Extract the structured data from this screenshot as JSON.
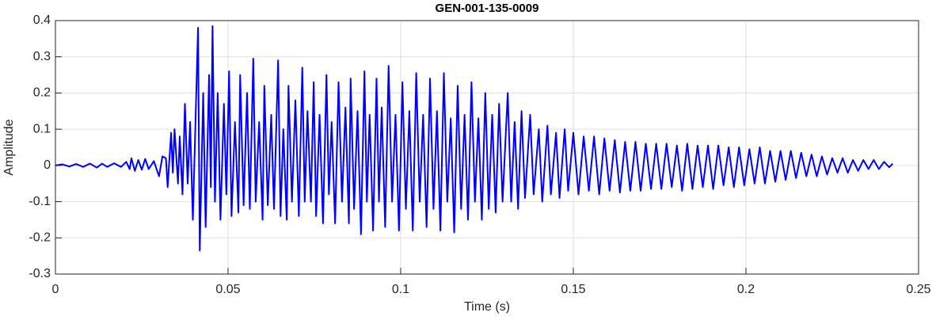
{
  "chart_data": {
    "type": "line",
    "title": "GEN-001-135-0009",
    "x_label": "Time (s)",
    "y_label": "Amplitude",
    "x": [
      0,
      0.002,
      0.004,
      0.006,
      0.008,
      0.01,
      0.012,
      0.0135,
      0.015,
      0.017,
      0.019,
      0.0205,
      0.0215,
      0.022,
      0.023,
      0.024,
      0.025,
      0.026,
      0.027,
      0.0285,
      0.03,
      0.031,
      0.032,
      0.0325,
      0.0335,
      0.034,
      0.0345,
      0.0355,
      0.036,
      0.0368,
      0.0375,
      0.0383,
      0.039,
      0.0398,
      0.0413,
      0.0418,
      0.0428,
      0.0435,
      0.0445,
      0.045,
      0.0455,
      0.0462,
      0.047,
      0.0478,
      0.0488,
      0.0495,
      0.0503,
      0.051,
      0.052,
      0.053,
      0.0535,
      0.0545,
      0.0555,
      0.0563,
      0.0573,
      0.058,
      0.059,
      0.06,
      0.0605,
      0.0615,
      0.0625,
      0.0633,
      0.0645,
      0.0652,
      0.066,
      0.067,
      0.0675,
      0.0685,
      0.0695,
      0.0705,
      0.0715,
      0.0722,
      0.073,
      0.074,
      0.0748,
      0.0755,
      0.0765,
      0.0775,
      0.0785,
      0.0792,
      0.08,
      0.081,
      0.082,
      0.083,
      0.084,
      0.085,
      0.0855,
      0.0865,
      0.0875,
      0.0885,
      0.0895,
      0.0902,
      0.091,
      0.092,
      0.093,
      0.0937,
      0.0945,
      0.0955,
      0.0965,
      0.0975,
      0.0985,
      0.0995,
      0.1005,
      0.1015,
      0.1025,
      0.1035,
      0.1045,
      0.1055,
      0.1065,
      0.1075,
      0.1085,
      0.1095,
      0.1105,
      0.1115,
      0.1125,
      0.1135,
      0.1145,
      0.1155,
      0.1165,
      0.1175,
      0.1185,
      0.1195,
      0.1205,
      0.1215,
      0.1225,
      0.1235,
      0.1245,
      0.1255,
      0.1265,
      0.1275,
      0.1285,
      0.1295,
      0.131,
      0.132,
      0.133,
      0.134,
      0.135,
      0.136,
      0.1375,
      0.1385,
      0.14,
      0.141,
      0.1425,
      0.1435,
      0.145,
      0.146,
      0.1475,
      0.1485,
      0.15,
      0.1515,
      0.153,
      0.1545,
      0.156,
      0.1575,
      0.159,
      0.1605,
      0.162,
      0.1635,
      0.165,
      0.1665,
      0.168,
      0.1695,
      0.171,
      0.1725,
      0.174,
      0.1755,
      0.177,
      0.1785,
      0.18,
      0.1815,
      0.183,
      0.1845,
      0.186,
      0.1875,
      0.189,
      0.1905,
      0.192,
      0.1935,
      0.195,
      0.1965,
      0.198,
      0.1995,
      0.201,
      0.2025,
      0.204,
      0.2055,
      0.207,
      0.2085,
      0.21,
      0.2115,
      0.213,
      0.2145,
      0.216,
      0.2175,
      0.219,
      0.2205,
      0.222,
      0.2235,
      0.225,
      0.2265,
      0.228,
      0.2295,
      0.231,
      0.2325,
      0.234,
      0.2355,
      0.237,
      0.2385,
      0.24,
      0.2415,
      0.2425
    ],
    "series": [
      {
        "color": "#0000ff",
        "values": [
          0,
          0.003,
          -0.003,
          0.004,
          -0.004,
          0.005,
          -0.006,
          0.005,
          -0.004,
          0.006,
          -0.004,
          0.01,
          -0.01,
          0.02,
          -0.015,
          0.015,
          -0.012,
          0.018,
          -0.01,
          0.012,
          -0.03,
          0.025,
          0.02,
          -0.06,
          0.09,
          -0.02,
          0.1,
          -0.05,
          0.08,
          -0.08,
          0.17,
          -0.05,
          0.12,
          -0.15,
          0.38,
          -0.235,
          0.2,
          -0.17,
          0.25,
          -0.06,
          0.385,
          -0.1,
          0.2,
          -0.15,
          0.17,
          -0.08,
          0.26,
          -0.14,
          0.12,
          -0.13,
          0.25,
          -0.11,
          0.2,
          -0.12,
          0.295,
          -0.1,
          0.12,
          -0.15,
          0.22,
          -0.11,
          0.14,
          -0.12,
          0.29,
          -0.14,
          0.1,
          -0.15,
          0.22,
          -0.1,
          0.18,
          -0.14,
          0.27,
          -0.1,
          0.15,
          -0.1,
          0.23,
          -0.14,
          0.14,
          -0.16,
          0.25,
          -0.08,
          0.12,
          -0.16,
          0.23,
          -0.1,
          0.16,
          -0.16,
          0.24,
          -0.12,
          0.15,
          -0.19,
          0.26,
          -0.1,
          0.14,
          -0.18,
          0.24,
          -0.1,
          0.16,
          -0.17,
          0.275,
          -0.1,
          0.14,
          -0.18,
          0.23,
          -0.12,
          0.15,
          -0.18,
          0.255,
          -0.1,
          0.14,
          -0.17,
          0.24,
          -0.12,
          0.15,
          -0.18,
          0.255,
          -0.1,
          0.13,
          -0.185,
          0.22,
          -0.12,
          0.14,
          -0.15,
          0.23,
          -0.1,
          0.13,
          -0.15,
          0.2,
          -0.12,
          0.14,
          -0.13,
          0.17,
          -0.1,
          0.2,
          -0.1,
          0.12,
          -0.12,
          0.15,
          -0.09,
          0.14,
          -0.08,
          0.1,
          -0.1,
          0.11,
          -0.08,
          0.09,
          -0.09,
          0.1,
          -0.07,
          0.09,
          -0.08,
          0.08,
          -0.07,
          0.08,
          -0.08,
          0.075,
          -0.07,
          0.07,
          -0.075,
          0.065,
          -0.07,
          0.065,
          -0.07,
          0.06,
          -0.065,
          0.06,
          -0.065,
          0.06,
          -0.06,
          0.055,
          -0.07,
          0.06,
          -0.065,
          0.055,
          -0.06,
          0.055,
          -0.065,
          0.055,
          -0.055,
          0.05,
          -0.06,
          0.05,
          -0.055,
          0.045,
          -0.05,
          0.05,
          -0.05,
          0.04,
          -0.045,
          0.04,
          -0.04,
          0.04,
          -0.035,
          0.035,
          -0.03,
          0.03,
          -0.03,
          0.025,
          -0.025,
          0.02,
          -0.02,
          0.02,
          -0.02,
          0.015,
          -0.015,
          0.015,
          -0.01,
          0.015,
          -0.01,
          0.01,
          -0.005,
          0.005
        ]
      }
    ],
    "xlim": [
      0,
      0.25
    ],
    "xticks": [
      0,
      0.05,
      0.1,
      0.15,
      0.2,
      0.25
    ],
    "ylim": [
      -0.3,
      0.4
    ],
    "yticks": [
      -0.3,
      -0.2,
      -0.1,
      0,
      0.1,
      0.2,
      0.3,
      0.4
    ],
    "grid": true
  }
}
